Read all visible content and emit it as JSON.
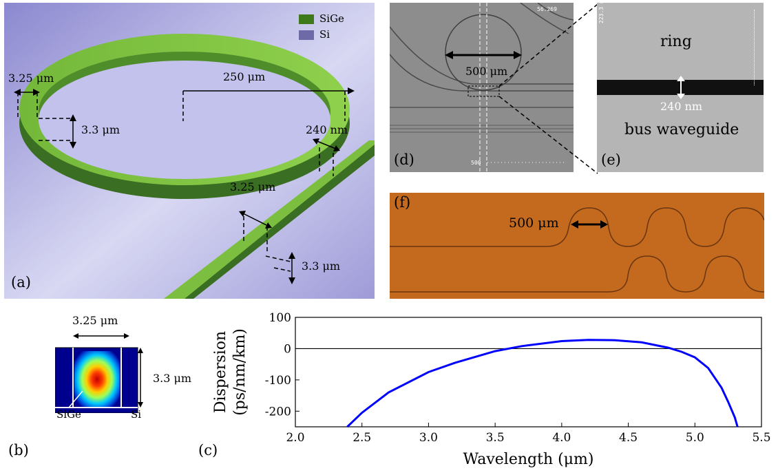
{
  "panel_a": {
    "label": "(a)",
    "legend": [
      {
        "name": "SiGe",
        "color": "#3f7a1a"
      },
      {
        "name": "Si",
        "color": "#6e6aa8"
      }
    ],
    "dims": {
      "ring_width": "3.25 μm",
      "ring_height": "3.3 μm",
      "radius": "250 μm",
      "gap": "240 nm",
      "bus_width": "3.25 μm",
      "bus_height": "3.3 μm"
    }
  },
  "panel_b": {
    "label": "(b)",
    "width": "3.25 μm",
    "height": "3.3 μm",
    "core": "SiGe",
    "substrate": "Si"
  },
  "panel_c": {
    "label": "(c)"
  },
  "panel_d": {
    "label": "(d)",
    "dimension": "500 μm",
    "readout": "56.269",
    "scale_text": "500"
  },
  "panel_e": {
    "label": "(e)",
    "top_text": "ring",
    "gap": "240 nm",
    "bottom_text": "bus waveguide",
    "scale_text": "223.3 n"
  },
  "panel_f": {
    "label": "(f)",
    "dimension": "500 μm"
  },
  "chart_data": {
    "type": "line",
    "xlabel": "Wavelength (μm)",
    "ylabel_line1": "Dispersion",
    "ylabel_line2": "(ps/nm/km)",
    "xlim": [
      2.0,
      5.5
    ],
    "ylim": [
      -250,
      100
    ],
    "xticks": [
      2.0,
      2.5,
      3.0,
      3.5,
      4.0,
      4.5,
      5.0,
      5.5
    ],
    "xtick_labels": [
      "2.0",
      "2.5",
      "3.0",
      "3.5",
      "4.0",
      "4.5",
      "5.0",
      "5.5"
    ],
    "yticks": [
      100,
      0,
      -100,
      -200
    ],
    "ytick_labels": [
      "100",
      "0",
      "-100",
      "-200"
    ],
    "reference_line": 0,
    "series": [
      {
        "color": "#0000ff",
        "x": [
          2.39,
          2.5,
          2.7,
          3.0,
          3.2,
          3.5,
          3.7,
          4.0,
          4.2,
          4.4,
          4.6,
          4.8,
          4.9,
          5.0,
          5.1,
          5.2,
          5.25,
          5.3,
          5.32
        ],
        "y": [
          -250,
          -205,
          -140,
          -75,
          -45,
          -8,
          8,
          24,
          28,
          27,
          20,
          3,
          -10,
          -28,
          -62,
          -125,
          -170,
          -220,
          -250
        ]
      }
    ]
  }
}
